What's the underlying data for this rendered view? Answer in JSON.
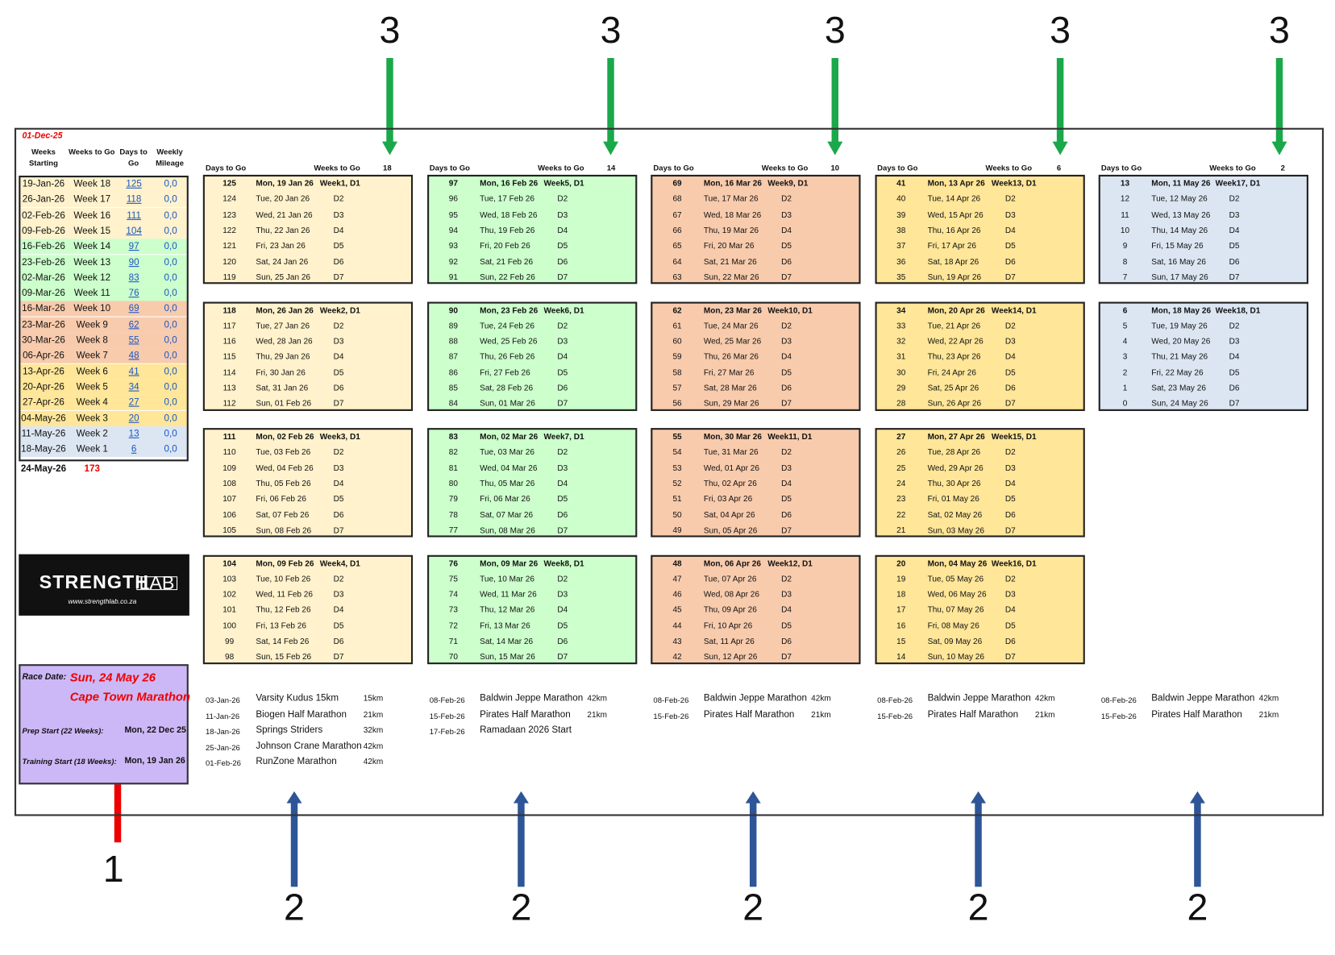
{
  "top_date": "01-Dec-25",
  "summary": {
    "headers": [
      "Weeks Starting",
      "Weeks to Go",
      "Days to Go",
      "Weekly Mileage"
    ],
    "rows": [
      [
        "19-Jan-26",
        "Week 18",
        125,
        "0,0"
      ],
      [
        "26-Jan-26",
        "Week 17",
        118,
        "0,0"
      ],
      [
        "02-Feb-26",
        "Week 16",
        111,
        "0,0"
      ],
      [
        "09-Feb-26",
        "Week 15",
        104,
        "0,0"
      ],
      [
        "16-Feb-26",
        "Week 14",
        97,
        "0,0"
      ],
      [
        "23-Feb-26",
        "Week 13",
        90,
        "0,0"
      ],
      [
        "02-Mar-26",
        "Week 12",
        83,
        "0,0"
      ],
      [
        "09-Mar-26",
        "Week 11",
        76,
        "0,0"
      ],
      [
        "16-Mar-26",
        "Week 10",
        69,
        "0,0"
      ],
      [
        "23-Mar-26",
        "Week 9",
        62,
        "0,0"
      ],
      [
        "30-Mar-26",
        "Week 8",
        55,
        "0,0"
      ],
      [
        "06-Apr-26",
        "Week 7",
        48,
        "0,0"
      ],
      [
        "13-Apr-26",
        "Week 6",
        41,
        "0,0"
      ],
      [
        "20-Apr-26",
        "Week 5",
        34,
        "0,0"
      ],
      [
        "27-Apr-26",
        "Week 4",
        27,
        "0,0"
      ],
      [
        "04-May-26",
        "Week 3",
        20,
        "0,0"
      ],
      [
        "11-May-26",
        "Week 2",
        13,
        "0,0"
      ],
      [
        "18-May-26",
        "Week 1",
        6,
        "0,0"
      ]
    ],
    "footer": [
      "24-May-26",
      173
    ]
  },
  "logo": {
    "name": "STRENGTH",
    "suffix": "LAB",
    "url": "www.strengthlab.co.za"
  },
  "race_info": {
    "race_date_label": "Race Date:",
    "race_date": "Sun, 24 May 26",
    "race_name": "Cape Town Marathon",
    "prep_label": "Prep Start (22 Weeks):",
    "prep_date": "Mon, 22 Dec 25",
    "training_label": "Training Start (18 Weeks):",
    "training_date": "Mon, 19 Jan 26"
  },
  "columns": [
    {
      "days_header": "Days to Go",
      "weeks_header": "Weeks to Go",
      "weeks_to_go": 18,
      "color": "#fff2cc",
      "weeks": [
        [
          [
            125,
            "Mon, 19 Jan 26",
            "Week1, D1"
          ],
          [
            124,
            "Tue, 20 Jan 26",
            "D2"
          ],
          [
            123,
            "Wed, 21 Jan 26",
            "D3"
          ],
          [
            122,
            "Thu, 22 Jan 26",
            "D4"
          ],
          [
            121,
            "Fri, 23 Jan 26",
            "D5"
          ],
          [
            120,
            "Sat, 24 Jan 26",
            "D6"
          ],
          [
            119,
            "Sun, 25 Jan 26",
            "D7"
          ]
        ],
        [
          [
            118,
            "Mon, 26 Jan 26",
            "Week2, D1"
          ],
          [
            117,
            "Tue, 27 Jan 26",
            "D2"
          ],
          [
            116,
            "Wed, 28 Jan 26",
            "D3"
          ],
          [
            115,
            "Thu, 29 Jan 26",
            "D4"
          ],
          [
            114,
            "Fri, 30 Jan 26",
            "D5"
          ],
          [
            113,
            "Sat, 31 Jan 26",
            "D6"
          ],
          [
            112,
            "Sun, 01 Feb 26",
            "D7"
          ]
        ],
        [
          [
            111,
            "Mon, 02 Feb 26",
            "Week3, D1"
          ],
          [
            110,
            "Tue, 03 Feb 26",
            "D2"
          ],
          [
            109,
            "Wed, 04 Feb 26",
            "D3"
          ],
          [
            108,
            "Thu, 05 Feb 26",
            "D4"
          ],
          [
            107,
            "Fri, 06 Feb 26",
            "D5"
          ],
          [
            106,
            "Sat, 07 Feb 26",
            "D6"
          ],
          [
            105,
            "Sun, 08 Feb 26",
            "D7"
          ]
        ],
        [
          [
            104,
            "Mon, 09 Feb 26",
            "Week4, D1"
          ],
          [
            103,
            "Tue, 10 Feb 26",
            "D2"
          ],
          [
            102,
            "Wed, 11 Feb 26",
            "D3"
          ],
          [
            101,
            "Thu, 12 Feb 26",
            "D4"
          ],
          [
            100,
            "Fri, 13 Feb 26",
            "D5"
          ],
          [
            99,
            "Sat, 14 Feb 26",
            "D6"
          ],
          [
            98,
            "Sun, 15 Feb 26",
            "D7"
          ]
        ]
      ],
      "races": [
        [
          "03-Jan-26",
          "Varsity Kudus 15km",
          "15km"
        ],
        [
          "11-Jan-26",
          "Biogen Half Marathon",
          "21km"
        ],
        [
          "18-Jan-26",
          "Springs Striders",
          "32km"
        ],
        [
          "25-Jan-26",
          "Johnson Crane Marathon",
          "42km"
        ],
        [
          "01-Feb-26",
          "RunZone Marathon",
          "42km"
        ]
      ]
    },
    {
      "days_header": "Days to Go",
      "weeks_header": "Weeks to Go",
      "weeks_to_go": 14,
      "color": "#ccffcc",
      "weeks": [
        [
          [
            97,
            "Mon, 16 Feb 26",
            "Week5, D1"
          ],
          [
            96,
            "Tue, 17 Feb 26",
            "D2"
          ],
          [
            95,
            "Wed, 18 Feb 26",
            "D3"
          ],
          [
            94,
            "Thu, 19 Feb 26",
            "D4"
          ],
          [
            93,
            "Fri, 20 Feb 26",
            "D5"
          ],
          [
            92,
            "Sat, 21 Feb 26",
            "D6"
          ],
          [
            91,
            "Sun, 22 Feb 26",
            "D7"
          ]
        ],
        [
          [
            90,
            "Mon, 23 Feb 26",
            "Week6, D1"
          ],
          [
            89,
            "Tue, 24 Feb 26",
            "D2"
          ],
          [
            88,
            "Wed, 25 Feb 26",
            "D3"
          ],
          [
            87,
            "Thu, 26 Feb 26",
            "D4"
          ],
          [
            86,
            "Fri, 27 Feb 26",
            "D5"
          ],
          [
            85,
            "Sat, 28 Feb 26",
            "D6"
          ],
          [
            84,
            "Sun, 01 Mar 26",
            "D7"
          ]
        ],
        [
          [
            83,
            "Mon, 02 Mar 26",
            "Week7, D1"
          ],
          [
            82,
            "Tue, 03 Mar 26",
            "D2"
          ],
          [
            81,
            "Wed, 04 Mar 26",
            "D3"
          ],
          [
            80,
            "Thu, 05 Mar 26",
            "D4"
          ],
          [
            79,
            "Fri, 06 Mar 26",
            "D5"
          ],
          [
            78,
            "Sat, 07 Mar 26",
            "D6"
          ],
          [
            77,
            "Sun, 08 Mar 26",
            "D7"
          ]
        ],
        [
          [
            76,
            "Mon, 09 Mar 26",
            "Week8, D1"
          ],
          [
            75,
            "Tue, 10 Mar 26",
            "D2"
          ],
          [
            74,
            "Wed, 11 Mar 26",
            "D3"
          ],
          [
            73,
            "Thu, 12 Mar 26",
            "D4"
          ],
          [
            72,
            "Fri, 13 Mar 26",
            "D5"
          ],
          [
            71,
            "Sat, 14 Mar 26",
            "D6"
          ],
          [
            70,
            "Sun, 15 Mar 26",
            "D7"
          ]
        ]
      ],
      "races": [
        [
          "08-Feb-26",
          "Baldwin Jeppe Marathon",
          "42km"
        ],
        [
          "15-Feb-26",
          "Pirates Half Marathon",
          "21km"
        ],
        [
          "17-Feb-26",
          "Ramadaan 2026 Start"
        ]
      ]
    },
    {
      "days_header": "Days to Go",
      "weeks_header": "Weeks to Go",
      "weeks_to_go": 10,
      "color": "#f8cbad",
      "weeks": [
        [
          [
            69,
            "Mon, 16 Mar 26",
            "Week9, D1"
          ],
          [
            68,
            "Tue, 17 Mar 26",
            "D2"
          ],
          [
            67,
            "Wed, 18 Mar 26",
            "D3"
          ],
          [
            66,
            "Thu, 19 Mar 26",
            "D4"
          ],
          [
            65,
            "Fri, 20 Mar 26",
            "D5"
          ],
          [
            64,
            "Sat, 21 Mar 26",
            "D6"
          ],
          [
            63,
            "Sun, 22 Mar 26",
            "D7"
          ]
        ],
        [
          [
            62,
            "Mon, 23 Mar 26",
            "Week10, D1"
          ],
          [
            61,
            "Tue, 24 Mar 26",
            "D2"
          ],
          [
            60,
            "Wed, 25 Mar 26",
            "D3"
          ],
          [
            59,
            "Thu, 26 Mar 26",
            "D4"
          ],
          [
            58,
            "Fri, 27 Mar 26",
            "D5"
          ],
          [
            57,
            "Sat, 28 Mar 26",
            "D6"
          ],
          [
            56,
            "Sun, 29 Mar 26",
            "D7"
          ]
        ],
        [
          [
            55,
            "Mon, 30 Mar 26",
            "Week11, D1"
          ],
          [
            54,
            "Tue, 31 Mar 26",
            "D2"
          ],
          [
            53,
            "Wed, 01 Apr 26",
            "D3"
          ],
          [
            52,
            "Thu, 02 Apr 26",
            "D4"
          ],
          [
            51,
            "Fri, 03 Apr 26",
            "D5"
          ],
          [
            50,
            "Sat, 04 Apr 26",
            "D6"
          ],
          [
            49,
            "Sun, 05 Apr 26",
            "D7"
          ]
        ],
        [
          [
            48,
            "Mon, 06 Apr 26",
            "Week12, D1"
          ],
          [
            47,
            "Tue, 07 Apr 26",
            "D2"
          ],
          [
            46,
            "Wed, 08 Apr 26",
            "D3"
          ],
          [
            45,
            "Thu, 09 Apr 26",
            "D4"
          ],
          [
            44,
            "Fri, 10 Apr 26",
            "D5"
          ],
          [
            43,
            "Sat, 11 Apr 26",
            "D6"
          ],
          [
            42,
            "Sun, 12 Apr 26",
            "D7"
          ]
        ]
      ],
      "races": [
        [
          "08-Feb-26",
          "Baldwin Jeppe Marathon",
          "42km"
        ],
        [
          "15-Feb-26",
          "Pirates Half Marathon",
          "21km"
        ]
      ]
    },
    {
      "days_header": "Days to Go",
      "weeks_header": "Weeks to Go",
      "weeks_to_go": 6,
      "color": "#ffe699",
      "weeks": [
        [
          [
            41,
            "Mon, 13 Apr 26",
            "Week13, D1"
          ],
          [
            40,
            "Tue, 14 Apr 26",
            "D2"
          ],
          [
            39,
            "Wed, 15 Apr 26",
            "D3"
          ],
          [
            38,
            "Thu, 16 Apr 26",
            "D4"
          ],
          [
            37,
            "Fri, 17 Apr 26",
            "D5"
          ],
          [
            36,
            "Sat, 18 Apr 26",
            "D6"
          ],
          [
            35,
            "Sun, 19 Apr 26",
            "D7"
          ]
        ],
        [
          [
            34,
            "Mon, 20 Apr 26",
            "Week14, D1"
          ],
          [
            33,
            "Tue, 21 Apr 26",
            "D2"
          ],
          [
            32,
            "Wed, 22 Apr 26",
            "D3"
          ],
          [
            31,
            "Thu, 23 Apr 26",
            "D4"
          ],
          [
            30,
            "Fri, 24 Apr 26",
            "D5"
          ],
          [
            29,
            "Sat, 25 Apr 26",
            "D6"
          ],
          [
            28,
            "Sun, 26 Apr 26",
            "D7"
          ]
        ],
        [
          [
            27,
            "Mon, 27 Apr 26",
            "Week15, D1"
          ],
          [
            26,
            "Tue, 28 Apr 26",
            "D2"
          ],
          [
            25,
            "Wed, 29 Apr 26",
            "D3"
          ],
          [
            24,
            "Thu, 30 Apr 26",
            "D4"
          ],
          [
            23,
            "Fri, 01 May 26",
            "D5"
          ],
          [
            22,
            "Sat, 02 May 26",
            "D6"
          ],
          [
            21,
            "Sun, 03 May 26",
            "D7"
          ]
        ],
        [
          [
            20,
            "Mon, 04 May 26",
            "Week16, D1"
          ],
          [
            19,
            "Tue, 05 May 26",
            "D2"
          ],
          [
            18,
            "Wed, 06 May 26",
            "D3"
          ],
          [
            17,
            "Thu, 07 May 26",
            "D4"
          ],
          [
            16,
            "Fri, 08 May 26",
            "D5"
          ],
          [
            15,
            "Sat, 09 May 26",
            "D6"
          ],
          [
            14,
            "Sun, 10 May 26",
            "D7"
          ]
        ]
      ],
      "races": [
        [
          "08-Feb-26",
          "Baldwin Jeppe Marathon",
          "42km"
        ],
        [
          "15-Feb-26",
          "Pirates Half Marathon",
          "21km"
        ]
      ]
    },
    {
      "days_header": "Days to Go",
      "weeks_header": "Weeks to Go",
      "weeks_to_go": 2,
      "color": "#dce6f2",
      "weeks": [
        [
          [
            13,
            "Mon, 11 May 26",
            "Week17, D1"
          ],
          [
            12,
            "Tue, 12 May 26",
            "D2"
          ],
          [
            11,
            "Wed, 13 May 26",
            "D3"
          ],
          [
            10,
            "Thu, 14 May 26",
            "D4"
          ],
          [
            9,
            "Fri, 15 May 26",
            "D5"
          ],
          [
            8,
            "Sat, 16 May 26",
            "D6"
          ],
          [
            7,
            "Sun, 17 May 26",
            "D7"
          ]
        ],
        [
          [
            6,
            "Mon, 18 May 26",
            "Week18, D1"
          ],
          [
            5,
            "Tue, 19 May 26",
            "D2"
          ],
          [
            4,
            "Wed, 20 May 26",
            "D3"
          ],
          [
            3,
            "Thu, 21 May 26",
            "D4"
          ],
          [
            2,
            "Fri, 22 May 26",
            "D5"
          ],
          [
            1,
            "Sat, 23 May 26",
            "D6"
          ],
          [
            0,
            "Sun, 24 May 26",
            "D7"
          ]
        ]
      ],
      "races": [
        [
          "08-Feb-26",
          "Baldwin Jeppe Marathon",
          "42km"
        ],
        [
          "15-Feb-26",
          "Pirates Half Marathon",
          "21km"
        ]
      ]
    }
  ],
  "annotations": {
    "top": [
      "3",
      "3",
      "3",
      "3",
      "3"
    ],
    "bottom": [
      "2",
      "2",
      "2",
      "2",
      "2"
    ],
    "left": "1"
  }
}
